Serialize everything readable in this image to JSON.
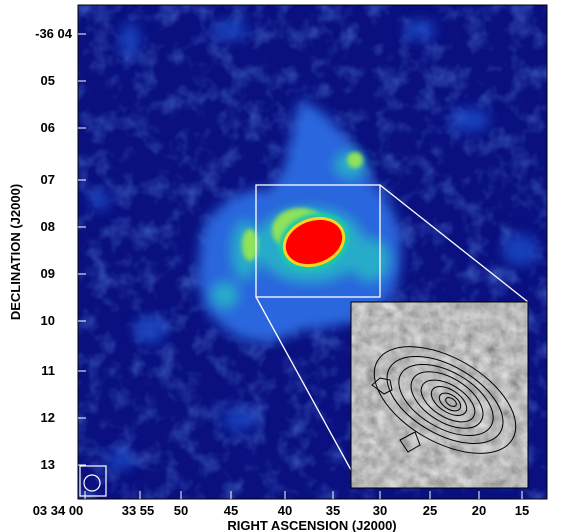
{
  "figure": {
    "xlabel": "RIGHT ASCENSION (J2000)",
    "ylabel": "DECLINATION (J2000)",
    "x_ticks": [
      "03 34 00",
      "33 55",
      "50",
      "45",
      "40",
      "35",
      "30",
      "25",
      "20",
      "15"
    ],
    "y_ticks": [
      "-36 04",
      "05",
      "06",
      "07",
      "08",
      "09",
      "10",
      "11",
      "12",
      "13"
    ]
  },
  "colors": {
    "background_map": "#0a0f78",
    "emission_low": "#1e5ad2",
    "emission_mid": "#2fd0b0",
    "emission_high": "#9be65a",
    "core": "#ff0000",
    "core_edge": "#ffd21e",
    "box_line": "#ffffff",
    "inset_contour": "#000000"
  }
}
